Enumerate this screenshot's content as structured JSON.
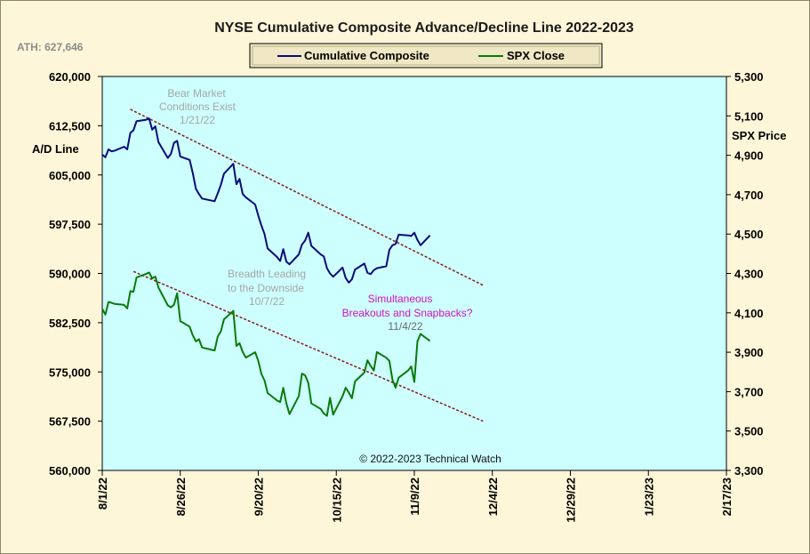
{
  "chart_data": {
    "type": "line",
    "title": "NYSE Cumulative  Composite Advance/Decline  Line 2022-2023",
    "ath_label": "ATH: 627,646",
    "copyright": "© 2022-2023  Technical Watch",
    "left_axis": {
      "label": "A/D Line",
      "min": 560000,
      "max": 620000,
      "ticks": [
        "620,000",
        "612,500",
        "605,000",
        "597,500",
        "590,000",
        "582,500",
        "575,000",
        "567,500",
        "560,000"
      ]
    },
    "right_axis": {
      "label": "SPX Price",
      "min": 3300,
      "max": 5300,
      "ticks": [
        "5,300",
        "5,100",
        "4,900",
        "4,700",
        "4,500",
        "4,300",
        "4,100",
        "3,900",
        "3,700",
        "3,500",
        "3,300"
      ]
    },
    "x_axis": {
      "start": "2022-08-01",
      "end": "2023-02-17",
      "ticks": [
        "8/1/22",
        "8/26/22",
        "9/20/22",
        "10/15/22",
        "11/9/22",
        "12/4/22",
        "12/29/22",
        "1/23/23",
        "2/17/23"
      ]
    },
    "legend": [
      "Cumulative Composite",
      "SPX Close"
    ],
    "colors": {
      "plot_bg": "#ccfffd",
      "frame_bg": "#fdf6d8",
      "ad_line": "#0a0a7a",
      "spx_line": "#0a7a0a",
      "trendline": "#8b1a1a"
    },
    "series": [
      {
        "name": "Cumulative Composite",
        "axis": "left",
        "points": [
          [
            "2022-08-01",
            608100
          ],
          [
            "2022-08-02",
            607700
          ],
          [
            "2022-08-03",
            608900
          ],
          [
            "2022-08-04",
            608600
          ],
          [
            "2022-08-05",
            608700
          ],
          [
            "2022-08-08",
            609300
          ],
          [
            "2022-08-09",
            608900
          ],
          [
            "2022-08-10",
            611400
          ],
          [
            "2022-08-11",
            611800
          ],
          [
            "2022-08-12",
            613200
          ],
          [
            "2022-08-15",
            613400
          ],
          [
            "2022-08-16",
            613600
          ],
          [
            "2022-08-17",
            611900
          ],
          [
            "2022-08-18",
            612400
          ],
          [
            "2022-08-19",
            610000
          ],
          [
            "2022-08-22",
            607600
          ],
          [
            "2022-08-23",
            608200
          ],
          [
            "2022-08-24",
            609900
          ],
          [
            "2022-08-25",
            610200
          ],
          [
            "2022-08-26",
            607800
          ],
          [
            "2022-08-29",
            607300
          ],
          [
            "2022-08-30",
            605300
          ],
          [
            "2022-08-31",
            602900
          ],
          [
            "2022-09-01",
            602100
          ],
          [
            "2022-09-02",
            601400
          ],
          [
            "2022-09-06",
            601000
          ],
          [
            "2022-09-07",
            602200
          ],
          [
            "2022-09-08",
            603500
          ],
          [
            "2022-09-09",
            605200
          ],
          [
            "2022-09-12",
            606700
          ],
          [
            "2022-09-13",
            603600
          ],
          [
            "2022-09-14",
            604400
          ],
          [
            "2022-09-15",
            602100
          ],
          [
            "2022-09-16",
            601600
          ],
          [
            "2022-09-19",
            600500
          ],
          [
            "2022-09-20",
            598800
          ],
          [
            "2022-09-21",
            597300
          ],
          [
            "2022-09-22",
            596000
          ],
          [
            "2022-09-23",
            593800
          ],
          [
            "2022-09-26",
            592500
          ],
          [
            "2022-09-27",
            591900
          ],
          [
            "2022-09-28",
            593700
          ],
          [
            "2022-09-29",
            591800
          ],
          [
            "2022-09-30",
            591400
          ],
          [
            "2022-10-03",
            592900
          ],
          [
            "2022-10-04",
            594400
          ],
          [
            "2022-10-05",
            595000
          ],
          [
            "2022-10-06",
            596200
          ],
          [
            "2022-10-07",
            594200
          ],
          [
            "2022-10-10",
            592900
          ],
          [
            "2022-10-11",
            592600
          ],
          [
            "2022-10-12",
            590800
          ],
          [
            "2022-10-13",
            590000
          ],
          [
            "2022-10-14",
            589500
          ],
          [
            "2022-10-17",
            590900
          ],
          [
            "2022-10-18",
            589300
          ],
          [
            "2022-10-19",
            588600
          ],
          [
            "2022-10-20",
            589100
          ],
          [
            "2022-10-21",
            590600
          ],
          [
            "2022-10-24",
            591500
          ],
          [
            "2022-10-25",
            590100
          ],
          [
            "2022-10-26",
            589900
          ],
          [
            "2022-10-27",
            590500
          ],
          [
            "2022-10-28",
            590800
          ],
          [
            "2022-10-31",
            591100
          ],
          [
            "2022-11-01",
            593600
          ],
          [
            "2022-11-02",
            594300
          ],
          [
            "2022-11-03",
            594500
          ],
          [
            "2022-11-04",
            595900
          ],
          [
            "2022-11-07",
            595800
          ],
          [
            "2022-11-08",
            595700
          ],
          [
            "2022-11-09",
            596200
          ],
          [
            "2022-11-10",
            595100
          ],
          [
            "2022-11-11",
            594300
          ],
          [
            "2022-11-14",
            595800
          ]
        ]
      },
      {
        "name": "SPX Close",
        "axis": "right",
        "points": [
          [
            "2022-08-01",
            4120
          ],
          [
            "2022-08-02",
            4091
          ],
          [
            "2022-08-03",
            4155
          ],
          [
            "2022-08-04",
            4151
          ],
          [
            "2022-08-05",
            4145
          ],
          [
            "2022-08-08",
            4140
          ],
          [
            "2022-08-09",
            4122
          ],
          [
            "2022-08-10",
            4210
          ],
          [
            "2022-08-11",
            4207
          ],
          [
            "2022-08-12",
            4280
          ],
          [
            "2022-08-15",
            4297
          ],
          [
            "2022-08-16",
            4305
          ],
          [
            "2022-08-17",
            4275
          ],
          [
            "2022-08-18",
            4284
          ],
          [
            "2022-08-19",
            4228
          ],
          [
            "2022-08-22",
            4138
          ],
          [
            "2022-08-23",
            4128
          ],
          [
            "2022-08-24",
            4141
          ],
          [
            "2022-08-25",
            4199
          ],
          [
            "2022-08-26",
            4058
          ],
          [
            "2022-08-29",
            4030
          ],
          [
            "2022-08-30",
            3986
          ],
          [
            "2022-08-31",
            3955
          ],
          [
            "2022-09-01",
            3966
          ],
          [
            "2022-09-02",
            3924
          ],
          [
            "2022-09-06",
            3909
          ],
          [
            "2022-09-07",
            3980
          ],
          [
            "2022-09-08",
            4006
          ],
          [
            "2022-09-09",
            4067
          ],
          [
            "2022-09-12",
            4110
          ],
          [
            "2022-09-13",
            3932
          ],
          [
            "2022-09-14",
            3946
          ],
          [
            "2022-09-15",
            3901
          ],
          [
            "2022-09-16",
            3873
          ],
          [
            "2022-09-19",
            3900
          ],
          [
            "2022-09-20",
            3856
          ],
          [
            "2022-09-21",
            3790
          ],
          [
            "2022-09-22",
            3757
          ],
          [
            "2022-09-23",
            3693
          ],
          [
            "2022-09-26",
            3655
          ],
          [
            "2022-09-27",
            3647
          ],
          [
            "2022-09-28",
            3719
          ],
          [
            "2022-09-29",
            3640
          ],
          [
            "2022-09-30",
            3586
          ],
          [
            "2022-10-03",
            3678
          ],
          [
            "2022-10-04",
            3791
          ],
          [
            "2022-10-05",
            3783
          ],
          [
            "2022-10-06",
            3745
          ],
          [
            "2022-10-07",
            3640
          ],
          [
            "2022-10-10",
            3612
          ],
          [
            "2022-10-11",
            3589
          ],
          [
            "2022-10-12",
            3577
          ],
          [
            "2022-10-13",
            3669
          ],
          [
            "2022-10-14",
            3583
          ],
          [
            "2022-10-17",
            3677
          ],
          [
            "2022-10-18",
            3720
          ],
          [
            "2022-10-19",
            3695
          ],
          [
            "2022-10-20",
            3666
          ],
          [
            "2022-10-21",
            3752
          ],
          [
            "2022-10-24",
            3797
          ],
          [
            "2022-10-25",
            3859
          ],
          [
            "2022-10-26",
            3830
          ],
          [
            "2022-10-27",
            3807
          ],
          [
            "2022-10-28",
            3901
          ],
          [
            "2022-10-31",
            3872
          ],
          [
            "2022-11-01",
            3856
          ],
          [
            "2022-11-02",
            3760
          ],
          [
            "2022-11-03",
            3720
          ],
          [
            "2022-11-04",
            3771
          ],
          [
            "2022-11-07",
            3807
          ],
          [
            "2022-11-08",
            3828
          ],
          [
            "2022-11-09",
            3749
          ],
          [
            "2022-11-10",
            3956
          ],
          [
            "2022-11-11",
            3993
          ],
          [
            "2022-11-14",
            3957
          ]
        ]
      }
    ],
    "trendlines": [
      {
        "axis": "left",
        "from": [
          "2022-08-10",
          615000
        ],
        "to": [
          "2022-12-01",
          588200
        ]
      },
      {
        "axis": "right",
        "from": [
          "2022-08-11",
          4310
        ],
        "to": [
          "2022-12-01",
          3550
        ]
      }
    ],
    "annotations": [
      {
        "lines": [
          "Bear Market",
          "Conditions  Exist",
          "1/21/22"
        ],
        "style": "gray"
      },
      {
        "lines": [
          "Breadth Leading",
          "to the Downside",
          "10/7/22"
        ],
        "style": "gray"
      },
      {
        "lines": [
          "Simultaneous",
          "Breakouts and Snapbacks?"
        ],
        "style": "magenta",
        "date": "11/4/22"
      }
    ]
  }
}
